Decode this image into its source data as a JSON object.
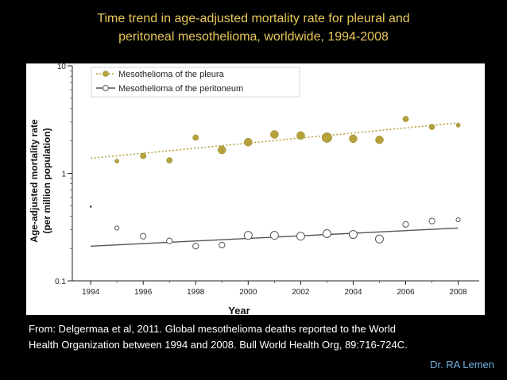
{
  "slide": {
    "title_line1": "Time trend in age-adjusted mortality rate for pleural and",
    "title_line2": "peritoneal mesothelioma, worldwide, 1994-2008",
    "citation_line1": "From: Delgermaa et al, 2011. Global mesothelioma deaths reported to the  World",
    "citation_line2": "Health Organization between 1994 and 2008. Bull World Health Org, 89:716-724C.",
    "author": "Dr. RA Lemen"
  },
  "colors": {
    "background": "#000000",
    "title": "#e8c65a",
    "citation": "#ffffff",
    "author": "#6fb0e0",
    "pleura": "#b5a23c",
    "peritoneum": "#555555"
  },
  "chart_data": {
    "type": "scatter",
    "xlabel": "Year",
    "ylabel_line1": "Age-adjusted mortality rate",
    "ylabel_line2": "(per million population)",
    "yscale": "log",
    "ylim": [
      0.1,
      10
    ],
    "xlim": [
      1993.3,
      2008.8
    ],
    "x_ticks": [
      1994,
      1996,
      1998,
      2000,
      2002,
      2004,
      2006,
      2008
    ],
    "y_ticks": [
      {
        "value": 0.1,
        "label": "0.1"
      },
      {
        "value": 1,
        "label": "1"
      },
      {
        "value": 10,
        "label": "10"
      }
    ],
    "legend_position": "top-left",
    "series": [
      {
        "name": "Mesothelioma of the pleura",
        "x": [
          1995,
          1996,
          1997,
          1998,
          1999,
          2000,
          2001,
          2002,
          2003,
          2004,
          2005,
          2006,
          2007,
          2008
        ],
        "y": [
          1.3,
          1.45,
          1.32,
          2.15,
          1.65,
          1.95,
          2.3,
          2.25,
          2.15,
          2.1,
          2.05,
          3.2,
          2.7,
          2.8
        ],
        "marker_size": [
          1,
          2,
          2,
          2,
          3,
          3,
          3,
          3,
          4,
          3,
          3,
          2,
          2,
          1
        ],
        "trend": [
          1.38,
          2.95
        ],
        "style": "filled"
      },
      {
        "name": "Mesothelioma of the peritoneum",
        "x": [
          1994,
          1995,
          1996,
          1997,
          1998,
          1999,
          2000,
          2001,
          2002,
          2003,
          2004,
          2005,
          2006,
          2007,
          2008
        ],
        "y": [
          0.49,
          0.31,
          0.26,
          0.235,
          0.21,
          0.215,
          0.265,
          0.265,
          0.26,
          0.275,
          0.27,
          0.245,
          0.335,
          0.36,
          0.37
        ],
        "marker_size": [
          0,
          1,
          2,
          2,
          2,
          2,
          3,
          3,
          3,
          3,
          3,
          3,
          2,
          2,
          1
        ],
        "trend": [
          0.21,
          0.31
        ],
        "style": "open"
      }
    ]
  }
}
